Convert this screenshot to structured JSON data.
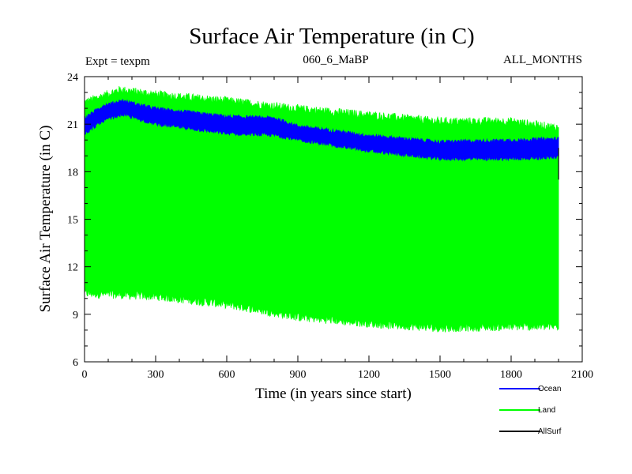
{
  "chart_data": {
    "type": "line",
    "title": "Surface Air Temperature (in C)",
    "subtitle_left": "Expt = texpm",
    "subtitle_center": "060_6_MaBP",
    "subtitle_right": "ALL_MONTHS",
    "xlabel": "Time (in years since start)",
    "ylabel": "Surface Air Temperature (in C)",
    "xlim": [
      0,
      2100
    ],
    "ylim": [
      6,
      24
    ],
    "x_ticks": [
      0,
      300,
      600,
      900,
      1200,
      1500,
      1800,
      2100
    ],
    "y_ticks": [
      6,
      9,
      12,
      15,
      18,
      21,
      24
    ],
    "x_tick_labels": [
      "0",
      "300",
      "600",
      "900",
      "1200",
      "1500",
      "1800",
      "2100"
    ],
    "y_tick_labels": [
      "6",
      "9",
      "12",
      "15",
      "18",
      "21",
      "24"
    ],
    "legend_position": "bottom-right, outside plot",
    "series": [
      {
        "name": "Land",
        "color": "#00ff00",
        "style": "band",
        "x": [
          0,
          150,
          300,
          600,
          900,
          1200,
          1500,
          1800,
          2000
        ],
        "upper": [
          22.2,
          23.0,
          22.7,
          22.3,
          21.8,
          21.4,
          21.0,
          21.0,
          20.6
        ],
        "lower": [
          10.5,
          10.4,
          10.3,
          9.8,
          9.0,
          8.6,
          8.3,
          8.4,
          8.4
        ]
      },
      {
        "name": "Ocean",
        "color": "#0000ff",
        "style": "band",
        "x": [
          0,
          80,
          160,
          300,
          600,
          800,
          900,
          1200,
          1500,
          1800,
          2000
        ],
        "upper": [
          21.3,
          22.1,
          22.4,
          21.9,
          21.4,
          21.3,
          20.8,
          20.2,
          19.8,
          19.9,
          20.0
        ],
        "lower": [
          20.5,
          21.3,
          21.7,
          21.1,
          20.5,
          20.4,
          20.1,
          19.4,
          18.9,
          18.9,
          19.0
        ]
      },
      {
        "name": "AllSurf",
        "color": "#000000",
        "style": "line",
        "x": [
          2000,
          2000
        ],
        "values": [
          19.5,
          17.5
        ]
      }
    ]
  }
}
